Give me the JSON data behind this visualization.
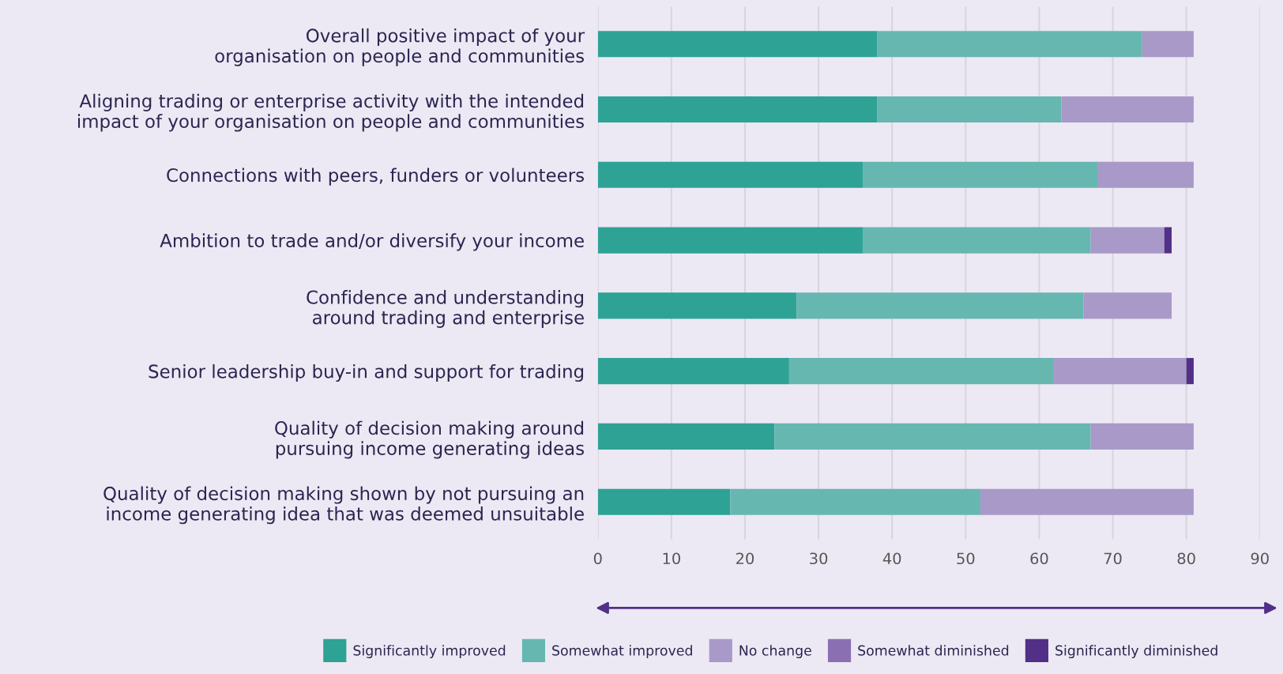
{
  "chart_data": {
    "type": "bar",
    "orientation": "horizontal",
    "stacked": true,
    "categories": [
      "Overall positive impact of your\norganisation on people and communities",
      "Aligning trading or enterprise activity with the intended\nimpact of your organisation on people and communities",
      "Connections with peers, funders or volunteers",
      "Ambition to trade and/or diversify your income",
      "Confidence and understanding\naround trading and enterprise",
      "Senior leadership buy-in and support for trading",
      "Quality of decision making around\npursuing income generating ideas",
      "Quality of decision making shown by not pursuing an\nincome generating idea that was deemed unsuitable"
    ],
    "series": [
      {
        "name": "Significantly improved",
        "color": "#2ea295",
        "values": [
          38,
          38,
          36,
          36,
          27,
          26,
          24,
          18
        ]
      },
      {
        "name": "Somewhat improved",
        "color": "#67b7b1",
        "values": [
          36,
          25,
          32,
          31,
          39,
          36,
          43,
          34
        ]
      },
      {
        "name": "No change",
        "color": "#a999c8",
        "values": [
          7,
          18,
          13,
          10,
          12,
          18,
          14,
          29
        ]
      },
      {
        "name": "Somewhat diminished",
        "color": "#8a70b3",
        "values": [
          0,
          0,
          0,
          0,
          0,
          0,
          0,
          0
        ]
      },
      {
        "name": "Significantly diminished",
        "color": "#523088",
        "values": [
          0,
          0,
          0,
          1,
          0,
          1,
          0,
          0
        ]
      }
    ],
    "xlim": [
      0,
      90
    ],
    "xticks": [
      0,
      10,
      20,
      30,
      40,
      50,
      60,
      70,
      80,
      90
    ],
    "grid": "x",
    "legend": "bottom"
  }
}
